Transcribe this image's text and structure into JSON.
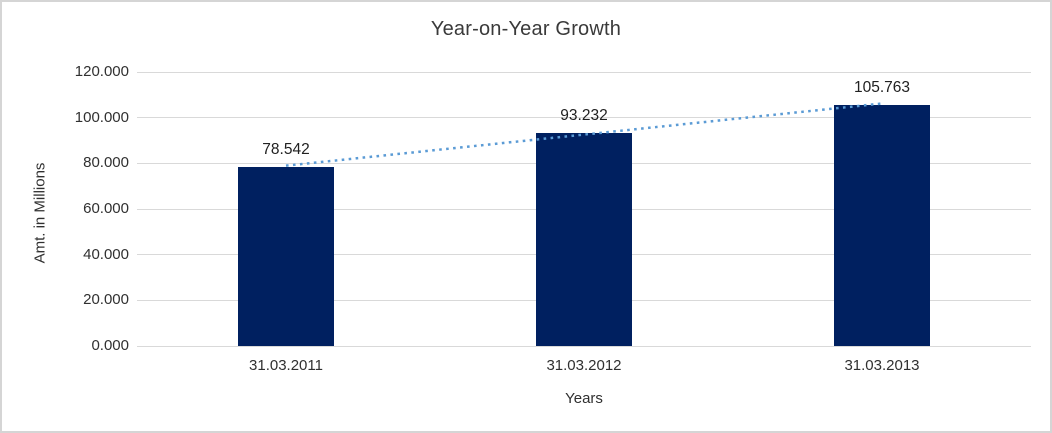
{
  "window": {
    "background_color": "#ffffff",
    "frame_border_color": "#d5d5d5"
  },
  "chart_data": {
    "type": "bar",
    "title": "Year-on-Year Growth",
    "categories": [
      "31.03.2011",
      "31.03.2012",
      "31.03.2013"
    ],
    "values": [
      78.542,
      93.232,
      105.763
    ],
    "data_labels": [
      "78.542",
      "93.232",
      "105.763"
    ],
    "xlabel": "Years",
    "ylabel": "Amt. in Millions",
    "ylim": [
      0,
      120
    ],
    "ytick_step": 20,
    "ytick_labels": [
      "0.000",
      "20.000",
      "40.000",
      "60.000",
      "80.000",
      "100.000",
      "120.000"
    ],
    "grid": true,
    "legend": "none",
    "bar_color": "#002060",
    "gridline_color": "#d9d9d9",
    "trendline": {
      "style": "dotted",
      "color": "#5b9bd5",
      "spans": "first-bar-top to last-bar-top"
    }
  }
}
